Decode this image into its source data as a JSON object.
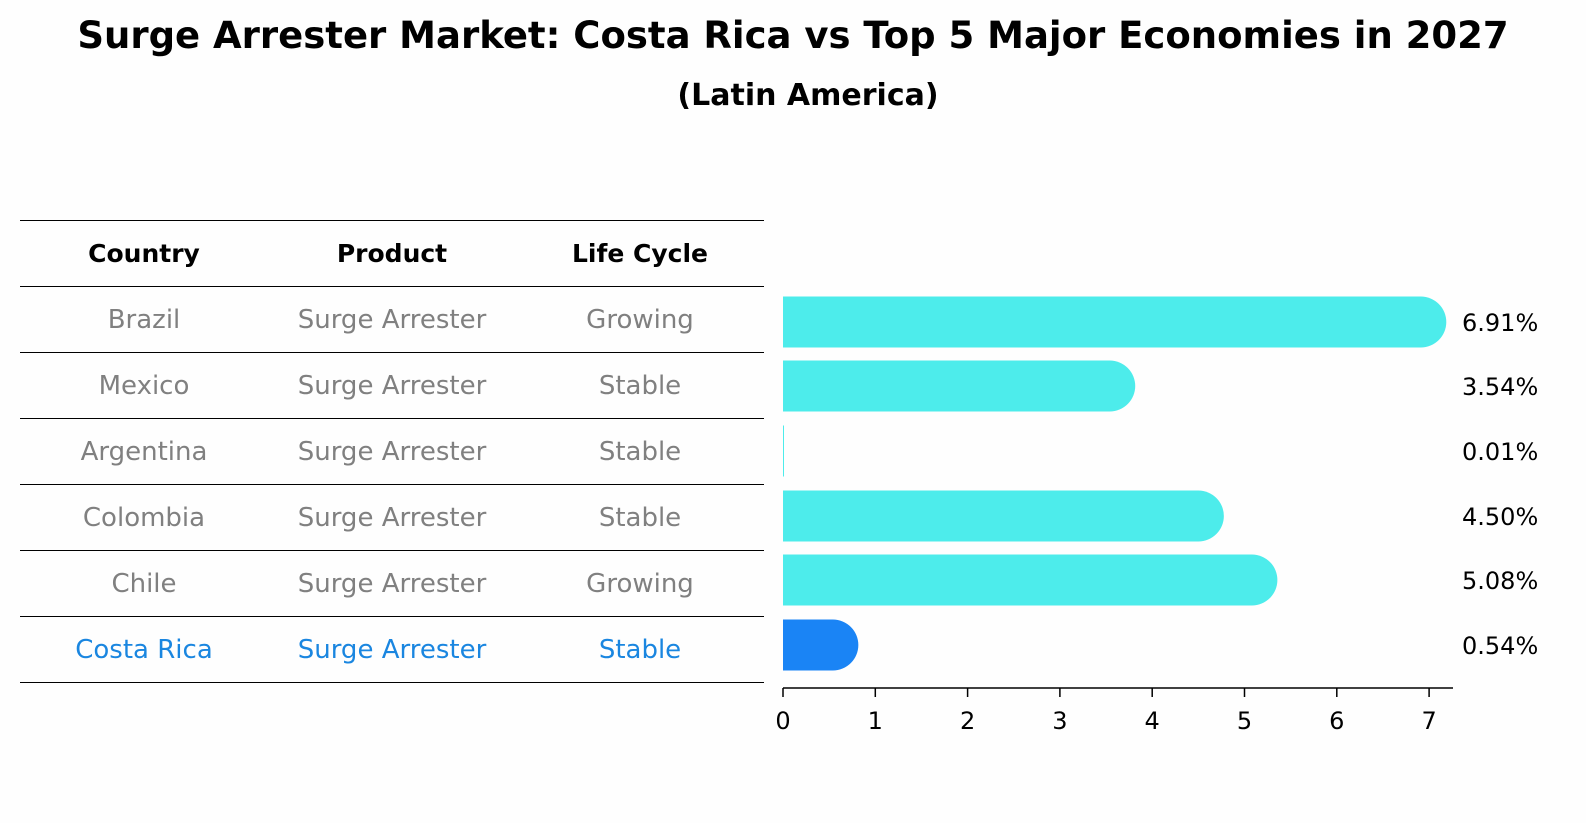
{
  "title": "Surge Arrester Market: Costa Rica vs Top 5 Major Economies in 2027",
  "subtitle": "(Latin America)",
  "table": {
    "headers": [
      "Country",
      "Product",
      "Life Cycle"
    ],
    "rows": [
      {
        "country": "Brazil",
        "product": "Surge Arrester",
        "life_cycle": "Growing"
      },
      {
        "country": "Mexico",
        "product": "Surge Arrester",
        "life_cycle": "Stable"
      },
      {
        "country": "Argentina",
        "product": "Surge Arrester",
        "life_cycle": "Stable"
      },
      {
        "country": "Colombia",
        "product": "Surge Arrester",
        "life_cycle": "Stable"
      },
      {
        "country": "Chile",
        "product": "Surge Arrester",
        "life_cycle": "Growing"
      },
      {
        "country": "Costa Rica",
        "product": "Surge Arrester",
        "life_cycle": "Stable"
      }
    ],
    "highlight_row": "Costa Rica",
    "colors": {
      "normal_text": "#808080",
      "highlight_text": "#1a86e0"
    }
  },
  "chart_data": {
    "type": "bar",
    "orientation": "horizontal",
    "categories": [
      "Brazil",
      "Mexico",
      "Argentina",
      "Colombia",
      "Chile",
      "Costa Rica"
    ],
    "values": [
      6.91,
      3.54,
      0.01,
      4.5,
      5.08,
      0.54
    ],
    "value_labels": [
      "6.91%",
      "3.54%",
      "0.01%",
      "4.50%",
      "5.08%",
      "0.54%"
    ],
    "xlim": [
      0,
      7.3
    ],
    "xticks": [
      0,
      1,
      2,
      3,
      4,
      5,
      6,
      7
    ],
    "grid": false,
    "colors": {
      "bar": "#4deceb",
      "highlight_bar": "#1a84f5"
    },
    "highlight": "Costa Rica"
  }
}
